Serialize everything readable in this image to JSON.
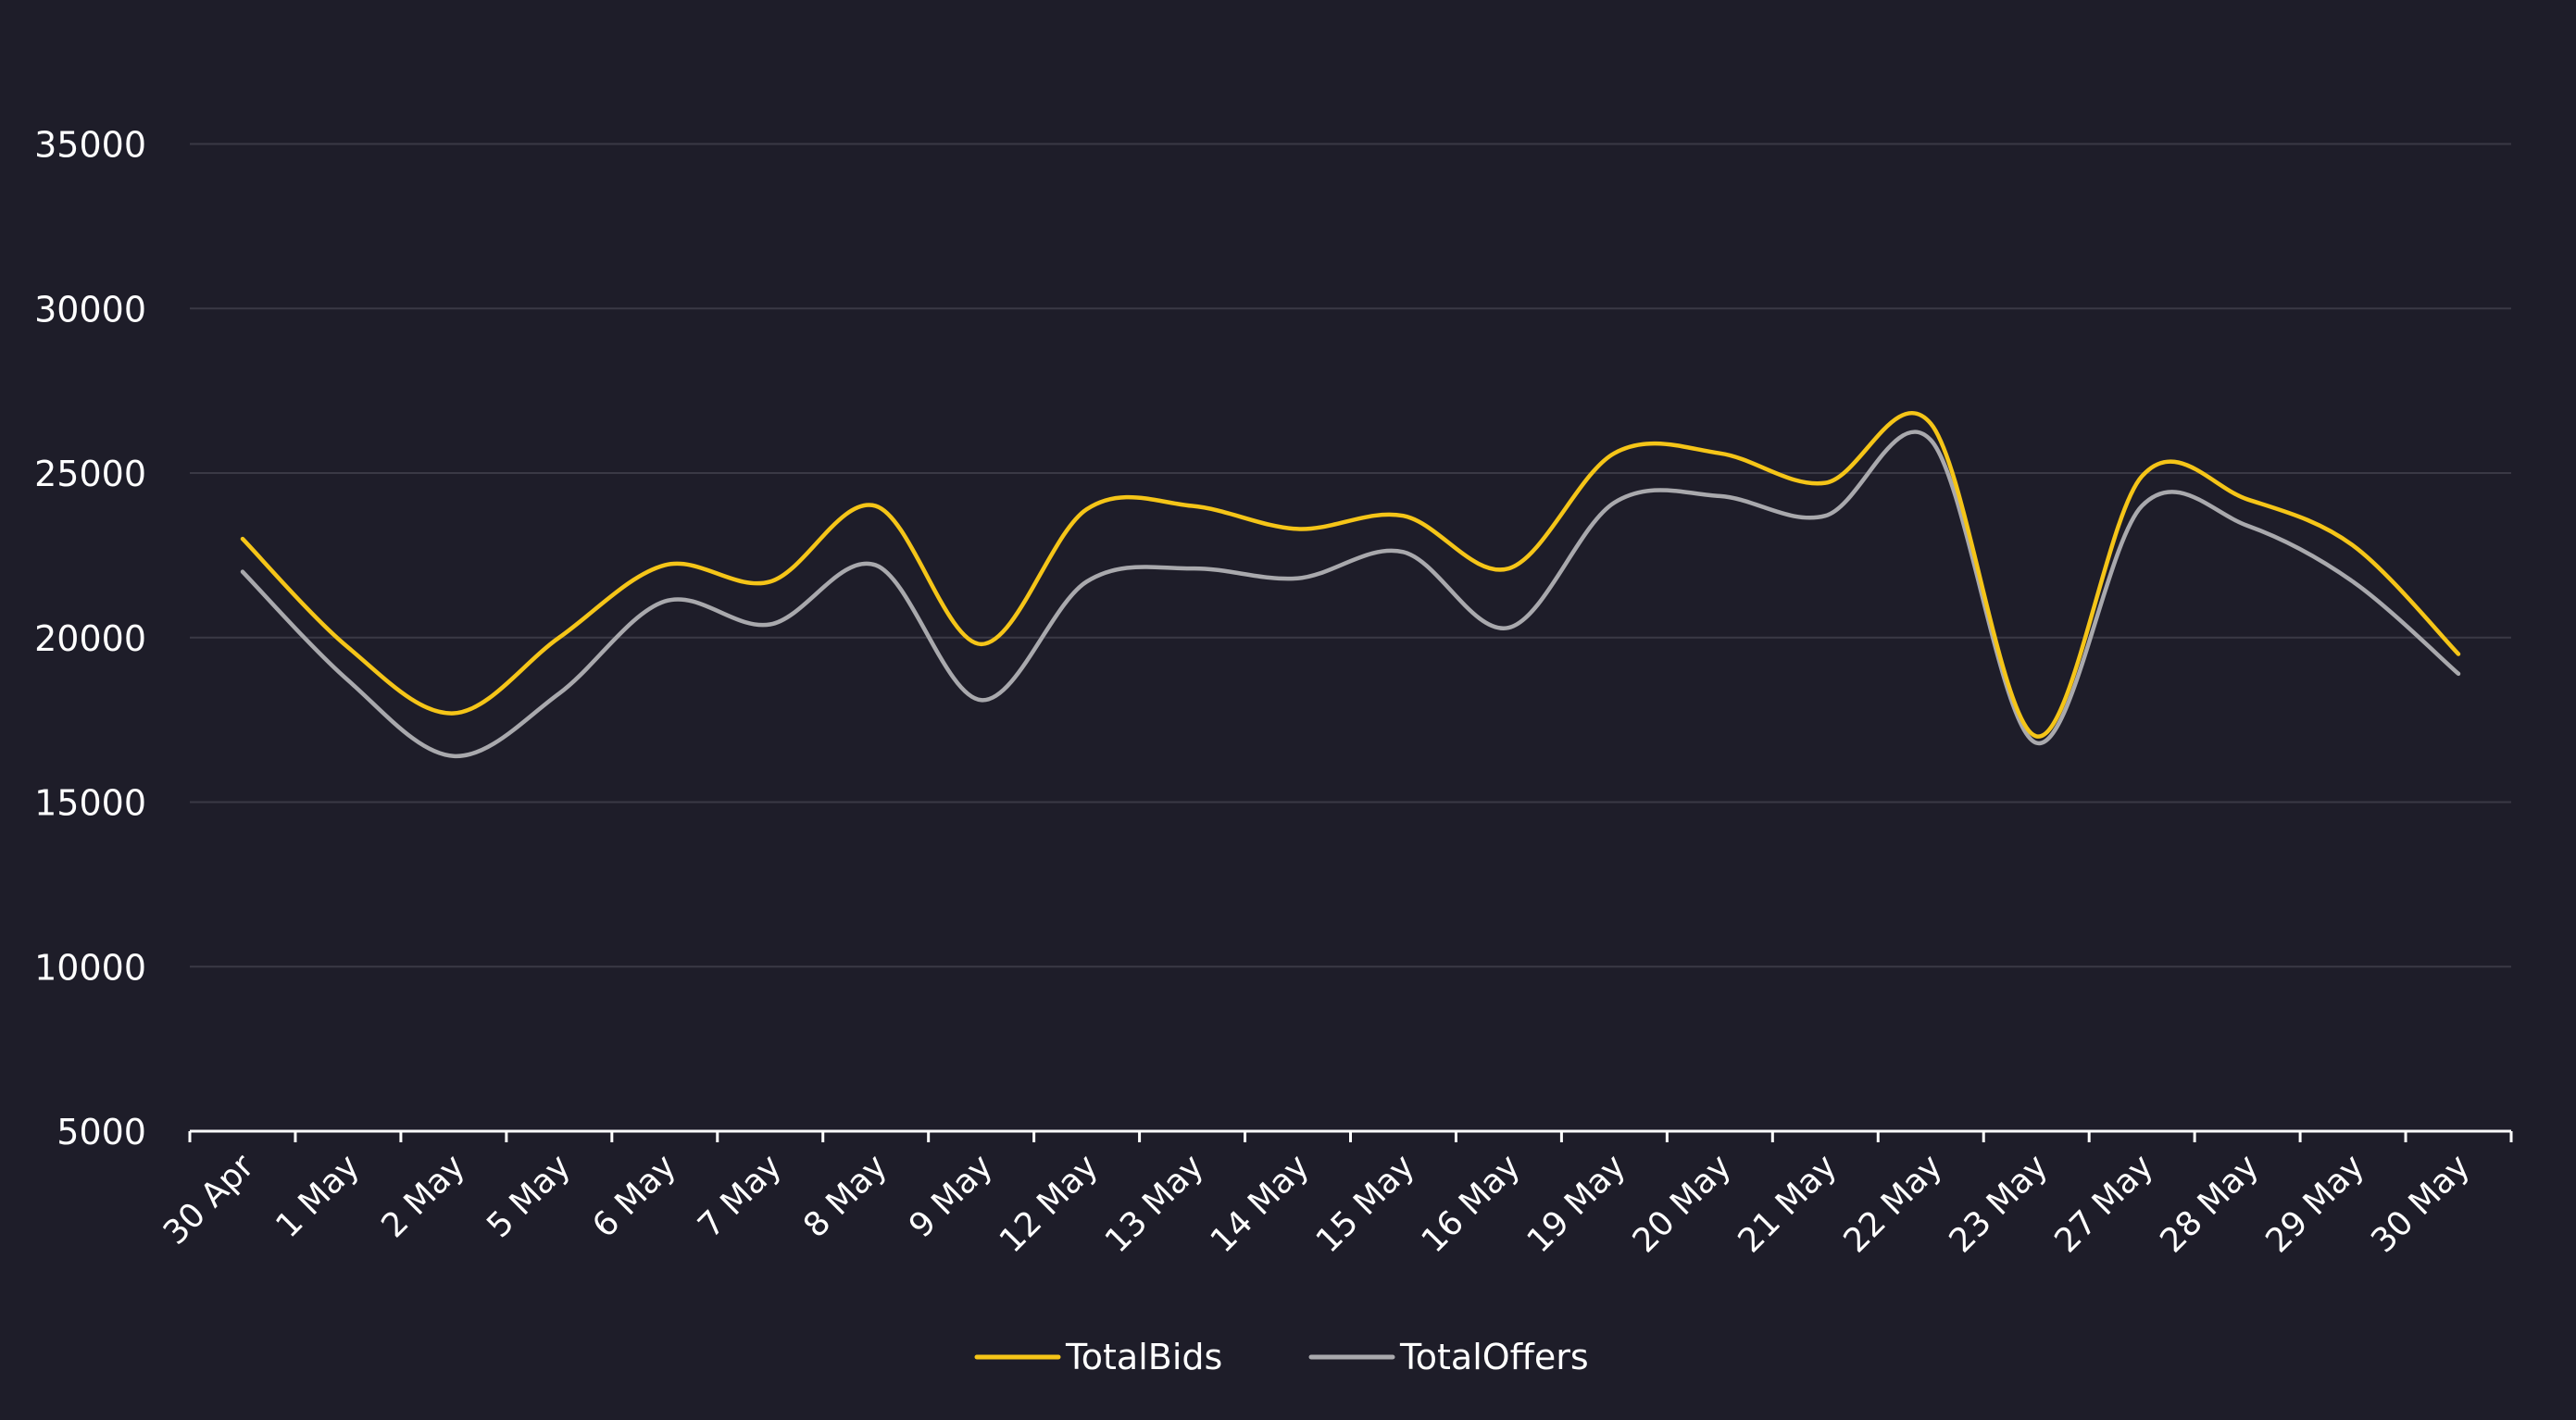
{
  "chart_data": {
    "type": "line",
    "title": "",
    "xlabel": "",
    "ylabel": "",
    "categories": [
      "30 Apr",
      "1 May",
      "2 May",
      "5 May",
      "6 May",
      "7 May",
      "8 May",
      "9 May",
      "12 May",
      "13 May",
      "14 May",
      "15 May",
      "16 May",
      "19 May",
      "20 May",
      "21 May",
      "22 May",
      "23 May",
      "27 May",
      "28 May",
      "29 May",
      "30 May"
    ],
    "series": [
      {
        "name": "TotalBids",
        "color": "#f5c518",
        "values": [
          23000,
          19700,
          17700,
          20000,
          22200,
          21700,
          24000,
          19800,
          23900,
          24000,
          23300,
          23700,
          22100,
          25600,
          25600,
          24700,
          26500,
          17000,
          24900,
          24200,
          22800,
          19500
        ]
      },
      {
        "name": "TotalOffers",
        "color": "#a9a9ad",
        "values": [
          22000,
          18700,
          16400,
          18300,
          21100,
          20400,
          22200,
          18100,
          21700,
          22100,
          21800,
          22600,
          20300,
          24100,
          24300,
          23700,
          26000,
          16800,
          24000,
          23400,
          21700,
          18900
        ]
      }
    ],
    "ylim": [
      5000,
      37000
    ],
    "yticks": [
      "5000",
      "10000",
      "15000",
      "20000",
      "25000",
      "30000",
      "35000"
    ],
    "grid": true,
    "legend_position": "bottom-center",
    "background_color": "#1e1d29",
    "grid_color": "#3a3945",
    "axis_color": "#ffffff",
    "text_color": "#ffffff"
  }
}
